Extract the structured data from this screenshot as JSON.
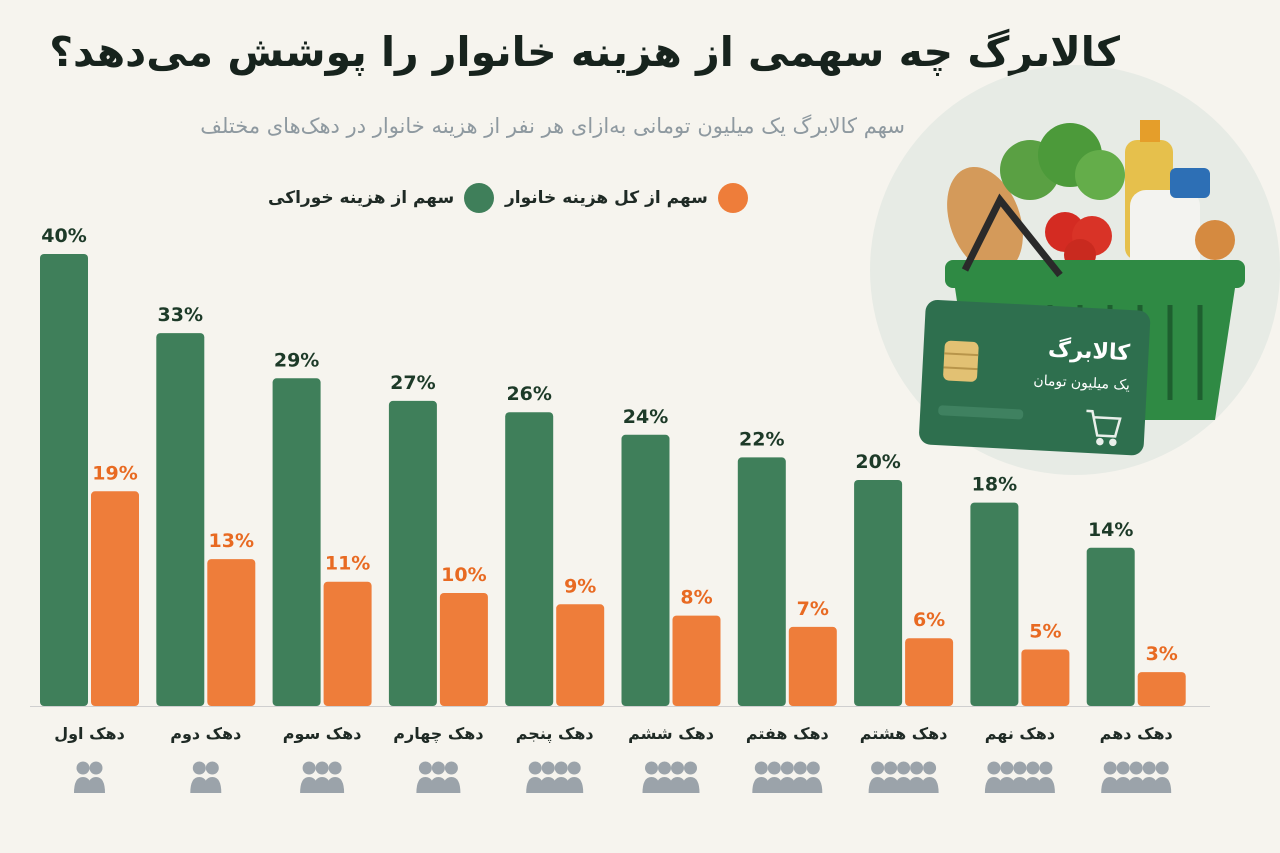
{
  "title": "کالابرگ چه سهمی از هزینه خانوار را پوشش می‌دهد؟",
  "subtitle": "سهم کالابرگ یک میلیون تومانی به‌ازای هر نفر از هزینه خانوار در دهک‌های مختلف",
  "legend": {
    "food": "سهم از هزینه خوراکی",
    "total": "سهم از کل هزینه خانوار"
  },
  "card": {
    "name": "کالابرگ",
    "amount": "یک میلیون تومان"
  },
  "colors": {
    "food": "#3f7f5a",
    "total": "#ee7d3a",
    "food_label": "#1d3a28",
    "total_label": "#e86a22"
  },
  "chart_data": {
    "type": "bar",
    "categories": [
      "دهک اول",
      "دهک دوم",
      "دهک سوم",
      "دهک چهارم",
      "دهک پنجم",
      "دهک ششم",
      "دهک هفتم",
      "دهک هشتم",
      "دهک نهم",
      "دهک دهم"
    ],
    "series": [
      {
        "name": "سهم از هزینه خوراکی",
        "values": [
          40,
          33,
          29,
          27,
          26,
          24,
          22,
          20,
          18,
          14
        ]
      },
      {
        "name": "سهم از کل هزینه خانوار",
        "values": [
          19,
          13,
          11,
          10,
          9,
          8,
          7,
          6,
          5,
          3
        ]
      }
    ],
    "value_suffix": "%",
    "ylim": [
      0,
      40
    ],
    "legend_position": "top",
    "grid": false
  }
}
